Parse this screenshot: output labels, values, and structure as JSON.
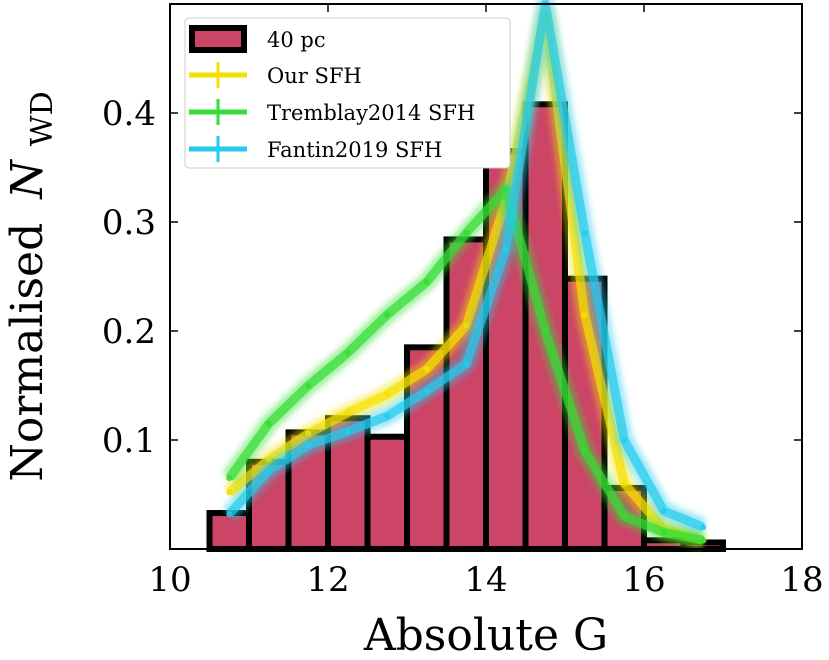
{
  "chart_data": {
    "type": "bar",
    "xlabel": "Absolute G",
    "ylabel": "Normalised",
    "ylabel_symbol": "N",
    "ylabel_subscript": "WD",
    "xlim": [
      10,
      18
    ],
    "ylim": [
      0,
      0.5
    ],
    "xticks": [
      10,
      12,
      14,
      16,
      18
    ],
    "yticks": [
      0.1,
      0.2,
      0.3,
      0.4
    ],
    "histogram": {
      "name": "40 pc",
      "color": "#cc4466",
      "edge_color": "#000000",
      "bin_width": 0.5,
      "bin_starts": [
        10.5,
        11.0,
        11.5,
        12.0,
        12.5,
        13.0,
        13.5,
        14.0,
        14.5,
        15.0,
        15.5,
        16.0,
        16.5
      ],
      "values": [
        0.033,
        0.08,
        0.107,
        0.12,
        0.103,
        0.185,
        0.284,
        0.365,
        0.408,
        0.248,
        0.056,
        0.008,
        0.006
      ]
    },
    "series": [
      {
        "name": "Our SFH",
        "color": "#f5e000",
        "x": [
          10.75,
          11.25,
          11.75,
          12.25,
          12.75,
          13.25,
          13.75,
          14.25,
          14.75,
          15.25,
          15.75,
          16.25,
          16.75
        ],
        "values": [
          0.052,
          0.082,
          0.106,
          0.125,
          0.142,
          0.165,
          0.205,
          0.32,
          0.49,
          0.215,
          0.06,
          0.018,
          0.008
        ]
      },
      {
        "name": "Tremblay2014 SFH",
        "color": "#33dd33",
        "x": [
          10.75,
          11.25,
          11.75,
          12.25,
          12.75,
          13.25,
          13.75,
          14.25,
          14.75,
          15.25,
          15.75,
          16.25,
          16.75
        ],
        "values": [
          0.065,
          0.115,
          0.15,
          0.18,
          0.215,
          0.245,
          0.29,
          0.33,
          0.2,
          0.09,
          0.03,
          0.015,
          0.008
        ]
      },
      {
        "name": "Fantin2019 SFH",
        "color": "#22ccee",
        "x": [
          10.75,
          11.25,
          11.75,
          12.25,
          12.75,
          13.25,
          13.75,
          14.25,
          14.75,
          15.25,
          15.75,
          16.25,
          16.75
        ],
        "values": [
          0.032,
          0.072,
          0.095,
          0.108,
          0.122,
          0.145,
          0.17,
          0.275,
          0.5,
          0.29,
          0.1,
          0.035,
          0.02
        ]
      }
    ],
    "legend": {
      "placement": "top-left"
    }
  }
}
